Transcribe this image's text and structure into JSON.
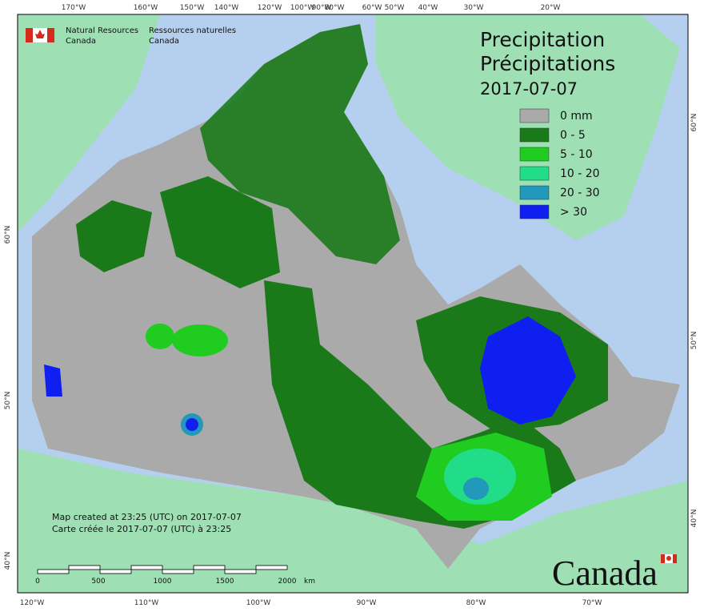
{
  "header": {
    "agency_en": "Natural Resources",
    "country_en": "Canada",
    "agency_fr": "Ressources naturelles",
    "country_fr": "Canada"
  },
  "title": {
    "line1": "Precipitation",
    "line2": "Précipitations",
    "date": "2017-07-07"
  },
  "legend": [
    {
      "label": "0 mm",
      "color": "#aaaaaa"
    },
    {
      "label": "0 - 5",
      "color": "#1a7a1a"
    },
    {
      "label": "5 - 10",
      "color": "#1fcc1f"
    },
    {
      "label": "10 - 20",
      "color": "#22dd88"
    },
    {
      "label": "20 - 30",
      "color": "#2299bb"
    },
    {
      "label": "> 30",
      "color": "#0f1ff0"
    }
  ],
  "notes": {
    "line1": "Map created at 23:25 (UTC) on 2017-07-07",
    "line2": "Carte créée le 2017-07-07 (UTC) à 23:25"
  },
  "scale": {
    "labels": [
      "0",
      "500",
      "1000",
      "1500",
      "2000"
    ],
    "unit": "km"
  },
  "graticule": {
    "top": [
      "170°W",
      "160°W",
      "150°W",
      "140°W",
      "120°W",
      "100°W",
      "90°W",
      "80°W",
      "60°W",
      "50°W",
      "40°W",
      "30°W",
      "20°W"
    ],
    "bottom": [
      "120°W",
      "110°W",
      "100°W",
      "90°W",
      "80°W",
      "70°W"
    ],
    "left": [
      "60°N",
      "50°N",
      "40°N"
    ],
    "right": [
      "60°N",
      "50°N",
      "40°N"
    ]
  },
  "wordmark": "Canada"
}
